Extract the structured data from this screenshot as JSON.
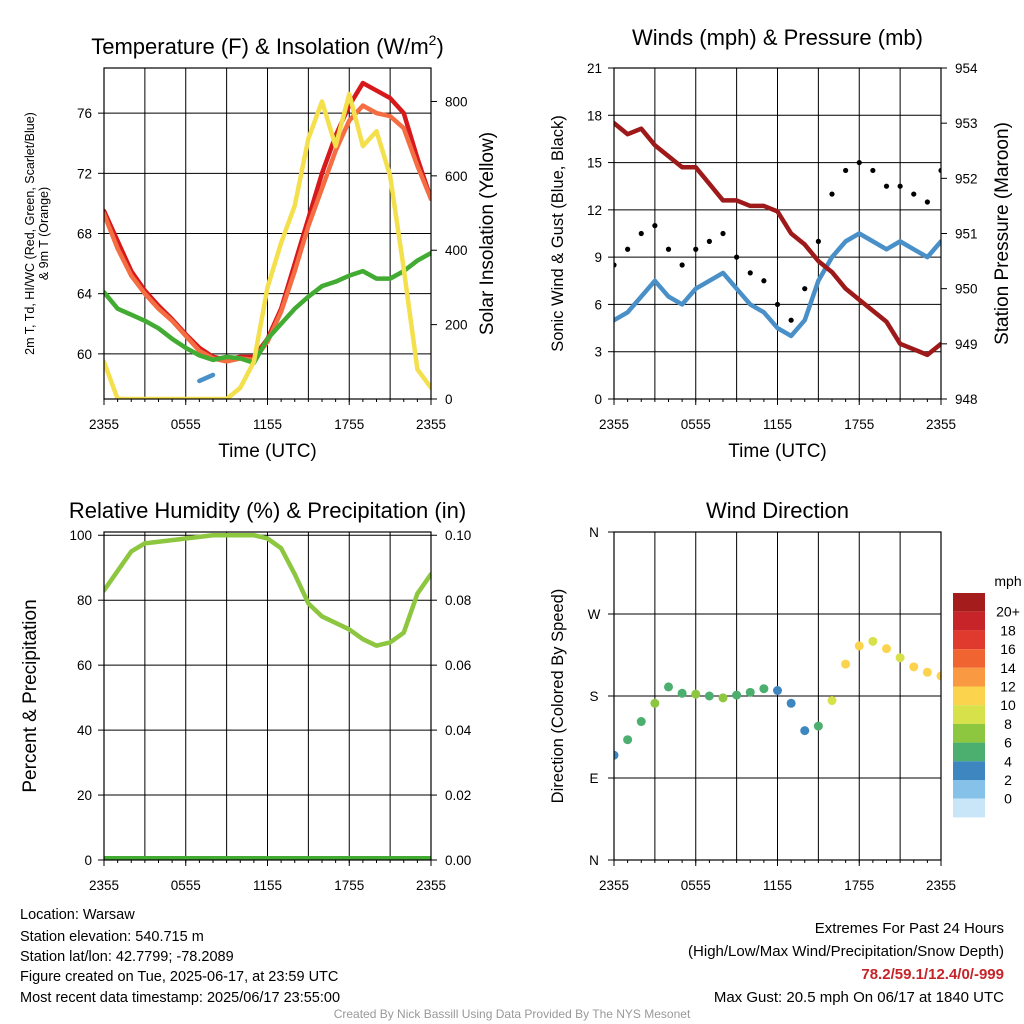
{
  "chart_data": [
    {
      "type": "line",
      "title": "Temperature (F) & Insolation (W/m²)",
      "xlabel": "Time (UTC)",
      "ylabel": "2m T, T_d, HI/WC (Red, Green, Scarlet/Blue) & 9m T (Orange)",
      "y2label": "Solar Insolation (Yellow)",
      "x_ticks": [
        "2355",
        "0555",
        "1155",
        "1755",
        "2355"
      ],
      "y_ticks": [
        60,
        64,
        68,
        72,
        76
      ],
      "y2_ticks": [
        0,
        200,
        400,
        600,
        800
      ],
      "ylim": [
        57.0,
        79.0
      ],
      "y2lim": [
        0,
        890
      ],
      "grid": true,
      "x_hours": [
        0,
        1,
        2,
        3,
        4,
        5,
        6,
        7,
        8,
        9,
        10,
        11,
        12,
        13,
        14,
        15,
        16,
        17,
        18,
        19,
        20,
        21,
        22,
        23,
        24
      ],
      "series": [
        {
          "color": "#d7191c",
          "values": [
            69.5,
            67.5,
            65.5,
            64.2,
            63.2,
            62.3,
            61.3,
            60.4,
            59.8,
            59.6,
            59.8,
            59.8,
            61.0,
            63.0,
            66.0,
            69.0,
            72.0,
            74.5,
            76.5,
            78.0,
            77.5,
            77.0,
            76.0,
            73.0,
            70.3
          ]
        },
        {
          "color": "#f46d43",
          "values": [
            69.3,
            67.0,
            65.2,
            64.0,
            63.0,
            62.2,
            61.2,
            60.2,
            59.7,
            59.5,
            59.7,
            59.6,
            60.8,
            62.8,
            65.5,
            68.5,
            71.0,
            73.5,
            75.5,
            76.5,
            76.0,
            75.8,
            75.0,
            72.5,
            70.3
          ]
        },
        {
          "color": "#41ab32",
          "values": [
            64.1,
            63.0,
            62.6,
            62.2,
            61.7,
            61.0,
            60.4,
            59.9,
            59.6,
            59.8,
            59.7,
            59.4,
            61.0,
            62.0,
            63.0,
            63.8,
            64.5,
            64.8,
            65.2,
            65.5,
            65.0,
            65.0,
            65.5,
            66.2,
            66.7
          ]
        },
        {
          "color": "#4a90c8",
          "values": [
            null,
            null,
            null,
            null,
            null,
            null,
            null,
            58.2,
            58.6,
            null,
            null,
            null,
            null,
            null,
            null,
            null,
            null,
            null,
            null,
            null,
            null,
            null,
            null,
            null,
            null
          ]
        },
        {
          "color": "#f4e04d",
          "axis": "y2",
          "values": [
            100,
            0,
            0,
            0,
            0,
            0,
            0,
            0,
            0,
            0,
            30,
            100,
            300,
            420,
            520,
            700,
            800,
            680,
            820,
            680,
            720,
            600,
            350,
            80,
            30
          ]
        }
      ]
    },
    {
      "type": "line",
      "title": "Winds (mph) & Pressure (mb)",
      "xlabel": "Time (UTC)",
      "ylabel": "Sonic Wind & Gust (Blue, Black)",
      "y2label": "Station Pressure (Maroon)",
      "x_ticks": [
        "2355",
        "0555",
        "1155",
        "1755",
        "2355"
      ],
      "y_ticks": [
        0,
        3,
        6,
        9,
        12,
        15,
        18,
        21
      ],
      "y2_ticks": [
        948,
        949,
        950,
        951,
        952,
        953,
        954
      ],
      "ylim": [
        0,
        21
      ],
      "y2lim": [
        948,
        954
      ],
      "grid": true,
      "x_hours": [
        0,
        1,
        2,
        3,
        4,
        5,
        6,
        7,
        8,
        9,
        10,
        11,
        12,
        13,
        14,
        15,
        16,
        17,
        18,
        19,
        20,
        21,
        22,
        23,
        24
      ],
      "series": [
        {
          "color": "#4a90c8",
          "values": [
            5.0,
            5.5,
            6.5,
            7.5,
            6.5,
            6.0,
            7.0,
            7.5,
            8.0,
            7.0,
            6.0,
            5.5,
            4.5,
            4.0,
            5.0,
            7.5,
            9.0,
            10.0,
            10.5,
            10.0,
            9.5,
            10.0,
            9.5,
            9.0,
            10.0
          ]
        },
        {
          "color": "#000000",
          "style": "dots",
          "values": [
            8.5,
            9.5,
            10.5,
            11.0,
            9.5,
            8.5,
            9.5,
            10.0,
            10.5,
            9.0,
            8.0,
            7.5,
            6.0,
            5.0,
            7.0,
            10.0,
            13.0,
            14.5,
            15.0,
            14.5,
            13.5,
            13.5,
            13.0,
            12.5,
            14.5
          ]
        },
        {
          "color": "#9e1a1a",
          "axis": "y2",
          "values": [
            953.0,
            952.8,
            952.9,
            952.6,
            952.4,
            952.2,
            952.2,
            951.9,
            951.6,
            951.6,
            951.5,
            951.5,
            951.4,
            951.0,
            950.8,
            950.5,
            950.3,
            950.0,
            949.8,
            949.6,
            949.4,
            949.0,
            948.9,
            948.8,
            949.0
          ]
        }
      ]
    },
    {
      "type": "line",
      "title": "Relative Humidity (%) & Precipitation (in)",
      "xlabel": "",
      "ylabel": "Percent & Precipitation",
      "x_ticks": [
        "2355",
        "0555",
        "1155",
        "1755",
        "2355"
      ],
      "y_ticks": [
        0,
        20,
        40,
        60,
        80,
        100
      ],
      "y2_ticks": [
        "0.00",
        "0.02",
        "0.04",
        "0.06",
        "0.08",
        "0.10"
      ],
      "ylim": [
        0,
        101
      ],
      "y2lim": [
        0,
        0.101
      ],
      "grid": true,
      "x_hours": [
        0,
        1,
        2,
        3,
        4,
        5,
        6,
        7,
        8,
        9,
        10,
        11,
        12,
        13,
        14,
        15,
        16,
        17,
        18,
        19,
        20,
        21,
        22,
        23,
        24
      ],
      "series": [
        {
          "color": "#8dc63f",
          "values": [
            83,
            89,
            95,
            97.5,
            98,
            98.5,
            99,
            99.5,
            100,
            100,
            100,
            100,
            99,
            96,
            88,
            79,
            75,
            73,
            71,
            68,
            66,
            67,
            70,
            82,
            88
          ]
        },
        {
          "color": "#41ab32",
          "axis": "y2",
          "values": [
            0,
            0,
            0,
            0,
            0,
            0,
            0,
            0,
            0,
            0,
            0,
            0,
            0,
            0,
            0,
            0,
            0,
            0,
            0,
            0,
            0,
            0,
            0,
            0,
            0
          ]
        }
      ]
    },
    {
      "type": "scatter",
      "title": "Wind Direction",
      "xlabel": "",
      "ylabel": "Direction (Colored By Speed)",
      "x_ticks": [
        "2355",
        "0555",
        "1155",
        "1755",
        "2355"
      ],
      "y_ticks": [
        "N",
        "E",
        "S",
        "W",
        "N"
      ],
      "ylim": [
        0,
        360
      ],
      "grid": true,
      "x_hours": [
        0,
        1,
        2,
        3,
        4,
        5,
        6,
        7,
        8,
        9,
        10,
        11,
        12,
        13,
        14,
        15,
        16,
        17,
        18,
        19,
        20,
        21,
        22,
        23,
        24
      ],
      "direction_deg": [
        115,
        132,
        152,
        172,
        190,
        183,
        182,
        180,
        178,
        181,
        184,
        188,
        186,
        172,
        142,
        147,
        175,
        215,
        235,
        240,
        232,
        222,
        212,
        206,
        202
      ],
      "speed_mph": [
        4,
        5,
        6,
        7,
        5,
        6,
        7,
        6,
        7,
        6,
        5,
        5,
        4,
        4,
        3,
        6,
        10,
        11,
        11,
        10,
        11,
        10,
        11,
        11,
        12
      ],
      "legend": {
        "title": "mph",
        "labels": [
          "20+",
          "18",
          "16",
          "14",
          "12",
          "10",
          "8",
          "6",
          "4",
          "2",
          "0"
        ],
        "colors": [
          "#a51c1c",
          "#c62428",
          "#e03a2e",
          "#f06432",
          "#f99a42",
          "#fcd34d",
          "#d7e24a",
          "#8dc63f",
          "#4caf6f",
          "#3d86bf",
          "#85c1e9",
          "#c8e6f7"
        ]
      }
    }
  ],
  "info": {
    "location": "Location: Warsaw",
    "elevation": "Station elevation: 540.715 m",
    "latlon": "Station lat/lon: 42.7799; -78.2089",
    "created": "Figure created on Tue, 2025-06-17, at 23:59 UTC",
    "recent": "Most recent data timestamp: 2025/06/17 23:55:00"
  },
  "extremes": {
    "title": "Extremes For Past 24 Hours",
    "subtitle": "(High/Low/Max Wind/Precipitation/Snow Depth)",
    "values": "78.2/59.1/12.4/0/-999",
    "values_color": "#c62428",
    "gust": "Max Gust: 20.5 mph On 06/17 at 1840 UTC"
  },
  "credit": "Created By Nick Bassill Using Data Provided By The NYS Mesonet"
}
